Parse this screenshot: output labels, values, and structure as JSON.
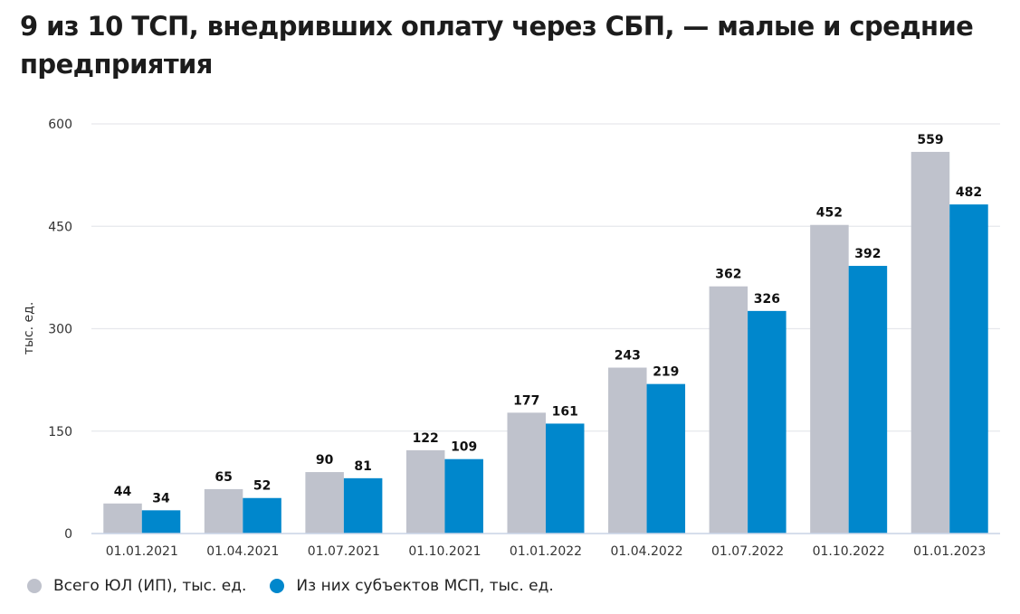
{
  "title": "9 из 10 ТСП, внедривших оплату через СБП, — малые и средние предприятия",
  "chart_data": {
    "type": "bar",
    "title": "9 из 10 ТСП, внедривших оплату через СБП, — малые и средние предприятия",
    "xlabel": "",
    "ylabel": "тыс. ед.",
    "ylim": [
      0,
      600
    ],
    "yticks": [
      0,
      150,
      300,
      450,
      600
    ],
    "grid": true,
    "legend_position": "bottom-left",
    "categories": [
      "01.01.2021",
      "01.04.2021",
      "01.07.2021",
      "01.10.2021",
      "01.01.2022",
      "01.04.2022",
      "01.07.2022",
      "01.10.2022",
      "01.01.2023"
    ],
    "series": [
      {
        "name": "Всего ЮЛ (ИП), тыс. ед.",
        "color": "#bfc2cc",
        "values": [
          44,
          65,
          90,
          122,
          177,
          243,
          362,
          452,
          559
        ]
      },
      {
        "name": "Из них субъектов МСП, тыс. ед.",
        "color": "#0087cc",
        "values": [
          34,
          52,
          81,
          109,
          161,
          219,
          326,
          392,
          482
        ]
      }
    ]
  },
  "colors": {
    "grid": "#e6e8ec",
    "axis": "#c9d3e6",
    "label": "#111111",
    "tick": "#333333"
  }
}
